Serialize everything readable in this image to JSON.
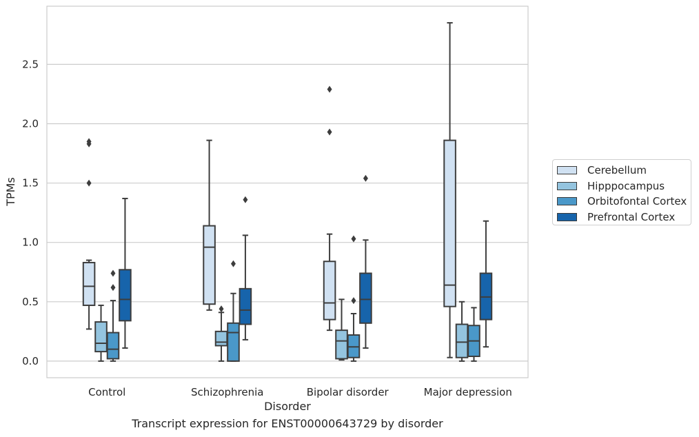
{
  "chart_data": {
    "type": "box",
    "caption": "Transcript expression for ENST00000643729 by disorder",
    "xlabel": "Disorder",
    "ylabel": "TPMs",
    "ylim": [
      -0.14,
      2.99
    ],
    "yticks": [
      0.0,
      0.5,
      1.0,
      1.5,
      2.0,
      2.5
    ],
    "ytick_labels": [
      "0.0",
      "0.5",
      "1.0",
      "1.5",
      "2.0",
      "2.5"
    ],
    "grid": "horizontal",
    "legend_position": "right",
    "categories": [
      "Control",
      "Schizophrenia",
      "Bipolar disorder",
      "Major depression"
    ],
    "series": [
      {
        "name": "Cerebellum",
        "color": "#d0e1f2",
        "boxes": [
          {
            "whislo": 0.27,
            "q1": 0.47,
            "med": 0.63,
            "q3": 0.83,
            "whishi": 0.85,
            "fliers": [
              1.5,
              1.83,
              1.85
            ]
          },
          {
            "whislo": 0.43,
            "q1": 0.48,
            "med": 0.96,
            "q3": 1.14,
            "whishi": 1.86,
            "fliers": []
          },
          {
            "whislo": 0.26,
            "q1": 0.35,
            "med": 0.49,
            "q3": 0.84,
            "whishi": 1.07,
            "fliers": [
              1.93,
              2.29
            ]
          },
          {
            "whislo": 0.03,
            "q1": 0.46,
            "med": 0.64,
            "q3": 1.86,
            "whishi": 2.85,
            "fliers": []
          }
        ]
      },
      {
        "name": "Hipppocampus",
        "color": "#94c4df",
        "boxes": [
          {
            "whislo": 0.0,
            "q1": 0.08,
            "med": 0.15,
            "q3": 0.33,
            "whishi": 0.47,
            "fliers": []
          },
          {
            "whislo": 0.0,
            "q1": 0.13,
            "med": 0.16,
            "q3": 0.25,
            "whishi": 0.41,
            "fliers": [
              0.44
            ]
          },
          {
            "whislo": 0.01,
            "q1": 0.02,
            "med": 0.17,
            "q3": 0.26,
            "whishi": 0.52,
            "fliers": []
          },
          {
            "whislo": 0.0,
            "q1": 0.03,
            "med": 0.16,
            "q3": 0.31,
            "whishi": 0.5,
            "fliers": []
          }
        ]
      },
      {
        "name": "Orbitofontal Cortex",
        "color": "#4a98c9",
        "boxes": [
          {
            "whislo": 0.0,
            "q1": 0.02,
            "med": 0.1,
            "q3": 0.24,
            "whishi": 0.51,
            "fliers": [
              0.62,
              0.74
            ]
          },
          {
            "whislo": 0.0,
            "q1": 0.0,
            "med": 0.24,
            "q3": 0.32,
            "whishi": 0.57,
            "fliers": [
              0.82
            ]
          },
          {
            "whislo": 0.0,
            "q1": 0.03,
            "med": 0.12,
            "q3": 0.22,
            "whishi": 0.4,
            "fliers": [
              0.51,
              1.03
            ]
          },
          {
            "whislo": 0.0,
            "q1": 0.04,
            "med": 0.17,
            "q3": 0.3,
            "whishi": 0.45,
            "fliers": []
          }
        ]
      },
      {
        "name": "Prefrontal Cortex",
        "color": "#1764ab",
        "boxes": [
          {
            "whislo": 0.11,
            "q1": 0.34,
            "med": 0.52,
            "q3": 0.77,
            "whishi": 1.37,
            "fliers": []
          },
          {
            "whislo": 0.18,
            "q1": 0.31,
            "med": 0.43,
            "q3": 0.61,
            "whishi": 1.06,
            "fliers": [
              1.36
            ]
          },
          {
            "whislo": 0.11,
            "q1": 0.32,
            "med": 0.52,
            "q3": 0.74,
            "whishi": 1.02,
            "fliers": [
              1.54
            ]
          },
          {
            "whislo": 0.12,
            "q1": 0.35,
            "med": 0.54,
            "q3": 0.74,
            "whishi": 1.18,
            "fliers": []
          }
        ]
      }
    ]
  }
}
